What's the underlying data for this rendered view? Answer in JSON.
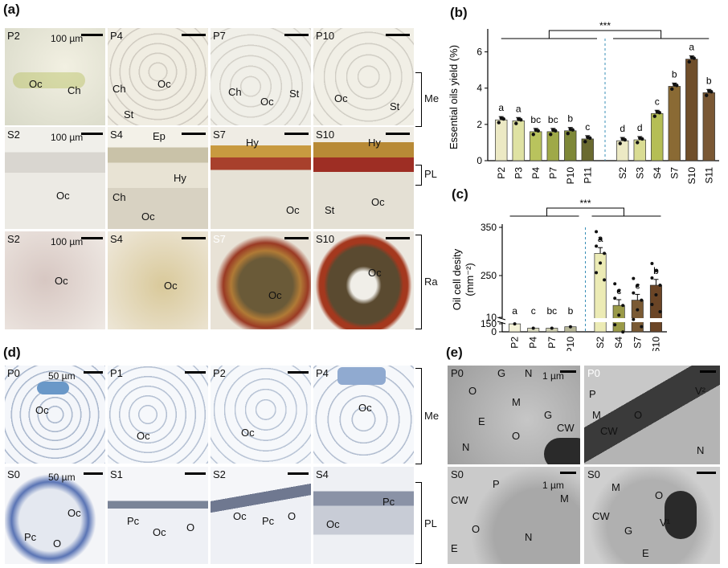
{
  "panels": {
    "a": "(a)",
    "b": "(b)",
    "c": "(c)",
    "d": "(d)",
    "e": "(e)"
  },
  "panel_a": {
    "row1": [
      {
        "id": "P2",
        "labels": [
          "Oc",
          "Ch"
        ],
        "scale": "100 µm"
      },
      {
        "id": "P4",
        "labels": [
          "Ch",
          "Oc",
          "St"
        ]
      },
      {
        "id": "P7",
        "labels": [
          "Ch",
          "Oc",
          "St"
        ]
      },
      {
        "id": "P10",
        "labels": [
          "Oc",
          "St"
        ]
      }
    ],
    "row2": [
      {
        "id": "S2",
        "labels": [
          "Oc"
        ],
        "scale": "100 µm"
      },
      {
        "id": "S4",
        "labels": [
          "Ep",
          "Hy",
          "Ch",
          "Oc"
        ]
      },
      {
        "id": "S7",
        "labels": [
          "Hy",
          "Oc"
        ]
      },
      {
        "id": "S10",
        "labels": [
          "Hy",
          "St",
          "Oc"
        ]
      }
    ],
    "row3": [
      {
        "id": "S2",
        "labels": [
          "Oc"
        ],
        "scale": "100 µm"
      },
      {
        "id": "S4",
        "labels": [
          "Oc"
        ]
      },
      {
        "id": "S7",
        "labels": [
          "Oc"
        ]
      },
      {
        "id": "S10",
        "labels": [
          "Oc"
        ]
      }
    ],
    "brackets": [
      "Me",
      "PL",
      "Ra"
    ]
  },
  "panel_d": {
    "row1": [
      {
        "id": "P0",
        "labels": [
          "Oc"
        ],
        "scale": "50 µm"
      },
      {
        "id": "P1",
        "labels": [
          "Oc"
        ]
      },
      {
        "id": "P2",
        "labels": [
          "Oc"
        ]
      },
      {
        "id": "P4",
        "labels": [
          "Oc"
        ]
      }
    ],
    "row2": [
      {
        "id": "S0",
        "labels": [
          "Oc",
          "Pc",
          "O"
        ],
        "scale": "50 µm"
      },
      {
        "id": "S1",
        "labels": [
          "Pc",
          "Oc",
          "O"
        ]
      },
      {
        "id": "S2",
        "labels": [
          "Oc",
          "Pc",
          "O"
        ]
      },
      {
        "id": "S4",
        "labels": [
          "Pc",
          "Oc"
        ]
      }
    ],
    "brackets": [
      "Me",
      "PL"
    ]
  },
  "panel_e": {
    "tiles": [
      {
        "id": "P0",
        "labels": [
          "G",
          "N",
          "O",
          "M",
          "E",
          "O",
          "G",
          "CW",
          "N"
        ],
        "scale": "1 µm"
      },
      {
        "id": "P0",
        "labels": [
          "V²",
          "P",
          "M",
          "O",
          "CW",
          "N"
        ]
      },
      {
        "id": "S0",
        "labels": [
          "P",
          "M",
          "CW",
          "O",
          "E",
          "N"
        ],
        "scale": "1 µm"
      },
      {
        "id": "S0",
        "labels": [
          "M",
          "O",
          "CW",
          "G",
          "V¹",
          "E"
        ]
      }
    ]
  },
  "chart_data": [
    {
      "type": "bar",
      "panel": "(b)",
      "ylabel": "Essential oils yield (%)",
      "ylim": [
        0,
        7
      ],
      "yticks": [
        0,
        2,
        4,
        6
      ],
      "significance": "***",
      "categories": [
        "P2",
        "P3",
        "P4",
        "P7",
        "P10",
        "P11",
        "S2",
        "S3",
        "S4",
        "S7",
        "S10",
        "S11"
      ],
      "values": [
        2.25,
        2.2,
        1.6,
        1.6,
        1.65,
        1.2,
        1.1,
        1.15,
        2.6,
        4.1,
        5.6,
        3.75
      ],
      "letters": [
        "a",
        "a",
        "bc",
        "bc",
        "b",
        "c",
        "d",
        "d",
        "c",
        "b",
        "a",
        "b"
      ],
      "colors": [
        "#ece9c4",
        "#dfe2a3",
        "#b9c35d",
        "#9fa948",
        "#7e8838",
        "#6a6a30",
        "#ece9c4",
        "#d9dc93",
        "#b5be55",
        "#8a6a34",
        "#6f4e2a",
        "#7a5834"
      ]
    },
    {
      "type": "bar",
      "panel": "(c)",
      "ylabel": "Oil cell desity (mm⁻²)",
      "yticks": [
        0,
        10,
        150,
        250,
        350
      ],
      "axis_break": [
        10,
        150
      ],
      "significance": "***",
      "categories": [
        "P2",
        "P4",
        "P7",
        "P10",
        "S2",
        "S4",
        "S7",
        "S10"
      ],
      "values": [
        5.5,
        2.5,
        2.5,
        3.5,
        296,
        188,
        199,
        230
      ],
      "letters": [
        "a",
        "c",
        "bc",
        "b",
        "a",
        "c",
        "c",
        "b"
      ],
      "colors": [
        "#f4f2d8",
        "#dcdcc0",
        "#cfcfb0",
        "#b8b898",
        "#ecebb5",
        "#9a9a48",
        "#7a5a34",
        "#6b4526"
      ]
    }
  ]
}
